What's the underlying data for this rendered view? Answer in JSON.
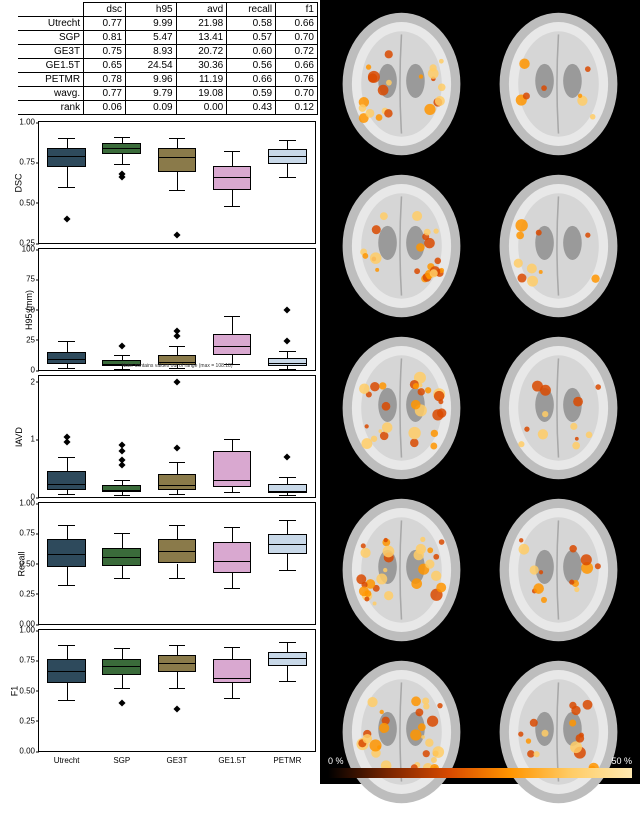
{
  "table": {
    "columns": [
      "",
      "dsc",
      "h95",
      "avd",
      "recall",
      "f1"
    ],
    "rows": [
      [
        "Utrecht",
        "0.77",
        "9.99",
        "21.98",
        "0.58",
        "0.66"
      ],
      [
        "SGP",
        "0.81",
        "5.47",
        "13.41",
        "0.57",
        "0.70"
      ],
      [
        "GE3T",
        "0.75",
        "8.93",
        "20.72",
        "0.60",
        "0.72"
      ],
      [
        "GE1.5T",
        "0.65",
        "24.54",
        "30.36",
        "0.56",
        "0.66"
      ],
      [
        "PETMR",
        "0.78",
        "9.96",
        "11.19",
        "0.66",
        "0.76"
      ],
      [
        "wavg.",
        "0.77",
        "9.79",
        "19.08",
        "0.59",
        "0.70"
      ],
      [
        "rank",
        "0.06",
        "0.09",
        "0.00",
        "0.43",
        "0.12"
      ]
    ],
    "fontsize": 10,
    "border_color": "#000000"
  },
  "categories": [
    "Utrecht",
    "SGP",
    "GE3T",
    "GE1.5T",
    "PETMR"
  ],
  "colors": [
    "#2e4a5c",
    "#3a6b3a",
    "#8a7a4a",
    "#d9a8d0",
    "#c8d8e8"
  ],
  "panels": [
    {
      "ylabel": "DSC",
      "ylim": [
        0.25,
        1.0
      ],
      "yticks": [
        0.25,
        0.5,
        0.75,
        1.0
      ],
      "boxes": [
        {
          "q1": 0.72,
          "med": 0.79,
          "q3": 0.84,
          "lo": 0.6,
          "hi": 0.9,
          "out": [
            0.4
          ]
        },
        {
          "q1": 0.8,
          "med": 0.84,
          "q3": 0.87,
          "lo": 0.74,
          "hi": 0.91,
          "out": [
            0.68,
            0.66
          ]
        },
        {
          "q1": 0.69,
          "med": 0.78,
          "q3": 0.84,
          "lo": 0.58,
          "hi": 0.9,
          "out": [
            0.3
          ]
        },
        {
          "q1": 0.58,
          "med": 0.66,
          "q3": 0.73,
          "lo": 0.48,
          "hi": 0.82,
          "out": []
        },
        {
          "q1": 0.74,
          "med": 0.79,
          "q3": 0.83,
          "lo": 0.66,
          "hi": 0.89,
          "out": []
        }
      ]
    },
    {
      "ylabel": "H95 (mm)",
      "ylim": [
        0,
        100
      ],
      "yticks": [
        0,
        25,
        50,
        75,
        100
      ],
      "note": "Note: contains values out of range (max = 108.18)",
      "boxes": [
        {
          "q1": 5,
          "med": 9,
          "q3": 15,
          "lo": 2,
          "hi": 24,
          "out": []
        },
        {
          "q1": 3,
          "med": 5,
          "q3": 8,
          "lo": 1,
          "hi": 12,
          "out": [
            20
          ]
        },
        {
          "q1": 4,
          "med": 7,
          "q3": 12,
          "lo": 2,
          "hi": 20,
          "out": [
            28,
            32
          ]
        },
        {
          "q1": 12,
          "med": 20,
          "q3": 30,
          "lo": 5,
          "hi": 45,
          "out": []
        },
        {
          "q1": 3,
          "med": 6,
          "q3": 10,
          "lo": 1,
          "hi": 16,
          "out": [
            24,
            50
          ]
        }
      ]
    },
    {
      "ylabel": "lAVD",
      "ylim": [
        0,
        2.1
      ],
      "yticks": [
        0,
        1,
        2
      ],
      "boxes": [
        {
          "q1": 0.12,
          "med": 0.22,
          "q3": 0.45,
          "lo": 0.05,
          "hi": 0.7,
          "out": [
            0.95,
            1.05
          ]
        },
        {
          "q1": 0.08,
          "med": 0.13,
          "q3": 0.2,
          "lo": 0.03,
          "hi": 0.3,
          "out": [
            0.55,
            0.65,
            0.8,
            0.9
          ]
        },
        {
          "q1": 0.12,
          "med": 0.2,
          "q3": 0.4,
          "lo": 0.05,
          "hi": 0.6,
          "out": [
            0.85,
            2.0
          ]
        },
        {
          "q1": 0.18,
          "med": 0.3,
          "q3": 0.8,
          "lo": 0.08,
          "hi": 1.0,
          "out": []
        },
        {
          "q1": 0.07,
          "med": 0.11,
          "q3": 0.22,
          "lo": 0.03,
          "hi": 0.35,
          "out": [
            0.7
          ]
        }
      ]
    },
    {
      "ylabel": "Recall",
      "ylim": [
        0.0,
        1.0
      ],
      "yticks": [
        0.0,
        0.25,
        0.5,
        0.75,
        1.0
      ],
      "boxes": [
        {
          "q1": 0.47,
          "med": 0.58,
          "q3": 0.7,
          "lo": 0.32,
          "hi": 0.82,
          "out": []
        },
        {
          "q1": 0.48,
          "med": 0.55,
          "q3": 0.63,
          "lo": 0.38,
          "hi": 0.75,
          "out": []
        },
        {
          "q1": 0.5,
          "med": 0.6,
          "q3": 0.7,
          "lo": 0.38,
          "hi": 0.82,
          "out": []
        },
        {
          "q1": 0.42,
          "med": 0.52,
          "q3": 0.68,
          "lo": 0.3,
          "hi": 0.8,
          "out": []
        },
        {
          "q1": 0.58,
          "med": 0.66,
          "q3": 0.74,
          "lo": 0.45,
          "hi": 0.86,
          "out": []
        }
      ]
    },
    {
      "ylabel": "F1",
      "ylim": [
        0.0,
        1.0
      ],
      "yticks": [
        0.0,
        0.25,
        0.5,
        0.75,
        1.0
      ],
      "show_x": true,
      "boxes": [
        {
          "q1": 0.56,
          "med": 0.66,
          "q3": 0.76,
          "lo": 0.42,
          "hi": 0.88,
          "out": []
        },
        {
          "q1": 0.63,
          "med": 0.7,
          "q3": 0.76,
          "lo": 0.52,
          "hi": 0.85,
          "out": [
            0.4
          ]
        },
        {
          "q1": 0.65,
          "med": 0.73,
          "q3": 0.79,
          "lo": 0.52,
          "hi": 0.88,
          "out": [
            0.35
          ]
        },
        {
          "q1": 0.56,
          "med": 0.6,
          "q3": 0.76,
          "lo": 0.44,
          "hi": 0.86,
          "out": []
        },
        {
          "q1": 0.7,
          "med": 0.77,
          "q3": 0.82,
          "lo": 0.58,
          "hi": 0.9,
          "out": []
        }
      ]
    }
  ],
  "colorbar": {
    "left_label": "0 %",
    "right_label": "50 %",
    "gradient": [
      "#000000",
      "#7a2500",
      "#d94a00",
      "#ff9500",
      "#ffcc66",
      "#ffe9b0"
    ]
  },
  "brains": {
    "rows": 5,
    "cols": 2,
    "overlay_density_left": [
      0.55,
      0.6,
      0.7,
      0.75,
      0.8
    ],
    "overlay_density_right": [
      0.2,
      0.25,
      0.3,
      0.35,
      0.4
    ],
    "overlay_colors": [
      "#ffcc66",
      "#ff9500",
      "#d94a00"
    ]
  }
}
